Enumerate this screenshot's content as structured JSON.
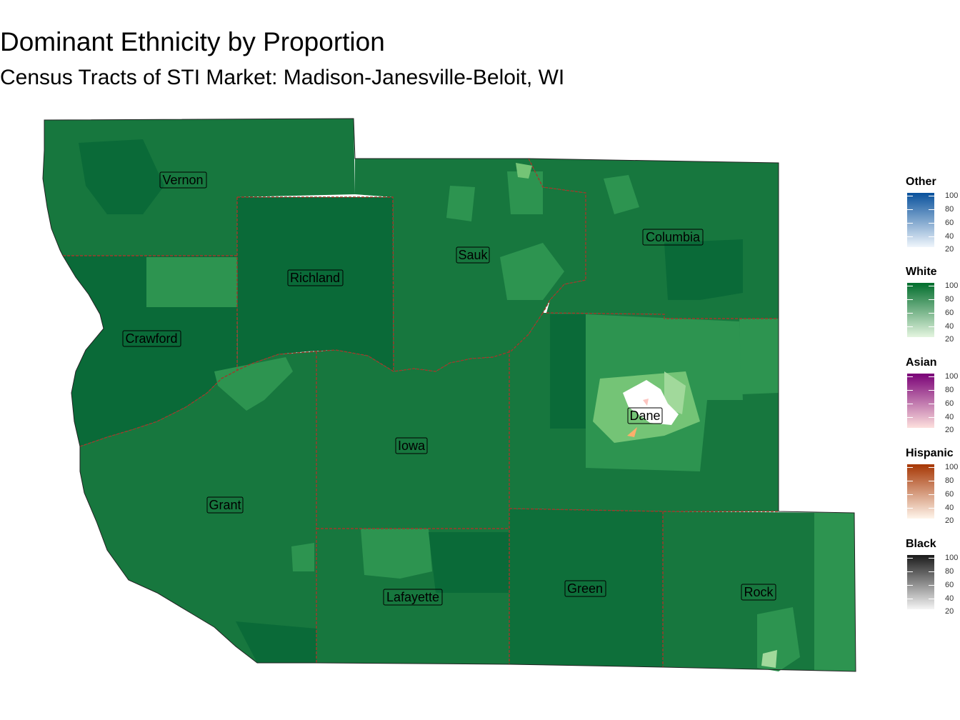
{
  "title": "Dominant Ethnicity by Proportion",
  "subtitle": "Census Tracts of STI Market: Madison-Janesville-Beloit, WI",
  "counties": [
    {
      "name": "Vernon"
    },
    {
      "name": "Richland"
    },
    {
      "name": "Sauk"
    },
    {
      "name": "Columbia"
    },
    {
      "name": "Crawford"
    },
    {
      "name": "Dane"
    },
    {
      "name": "Iowa"
    },
    {
      "name": "Grant"
    },
    {
      "name": "Lafayette"
    },
    {
      "name": "Green"
    },
    {
      "name": "Rock"
    }
  ],
  "legend": [
    {
      "title": "Other",
      "low_color": "#f0f6fc",
      "high_color": "#08519c",
      "ticks": [
        "100",
        "80",
        "60",
        "40",
        "20"
      ]
    },
    {
      "title": "White",
      "low_color": "#e5f5e0",
      "high_color": "#006d2c",
      "ticks": [
        "100",
        "80",
        "60",
        "40",
        "20"
      ]
    },
    {
      "title": "Asian",
      "low_color": "#fde0dd",
      "high_color": "#7a0177",
      "ticks": [
        "100",
        "80",
        "60",
        "40",
        "20"
      ]
    },
    {
      "title": "Hispanic",
      "low_color": "#fff5eb",
      "high_color": "#a63603",
      "ticks": [
        "100",
        "80",
        "60",
        "40",
        "20"
      ]
    },
    {
      "title": "Black",
      "low_color": "#f5f5f5",
      "high_color": "#1a1a1a",
      "ticks": [
        "100",
        "80",
        "60",
        "40",
        "20"
      ]
    }
  ],
  "colors": {
    "white_dark": "#0a6a38",
    "white_mid": "#17773e",
    "white_light": "#2d9450",
    "white_pale": "#74c476",
    "county_border": "#a0392a",
    "hispanic_tract": "#fdae6b",
    "asian_tract": "#fcc5c0"
  }
}
